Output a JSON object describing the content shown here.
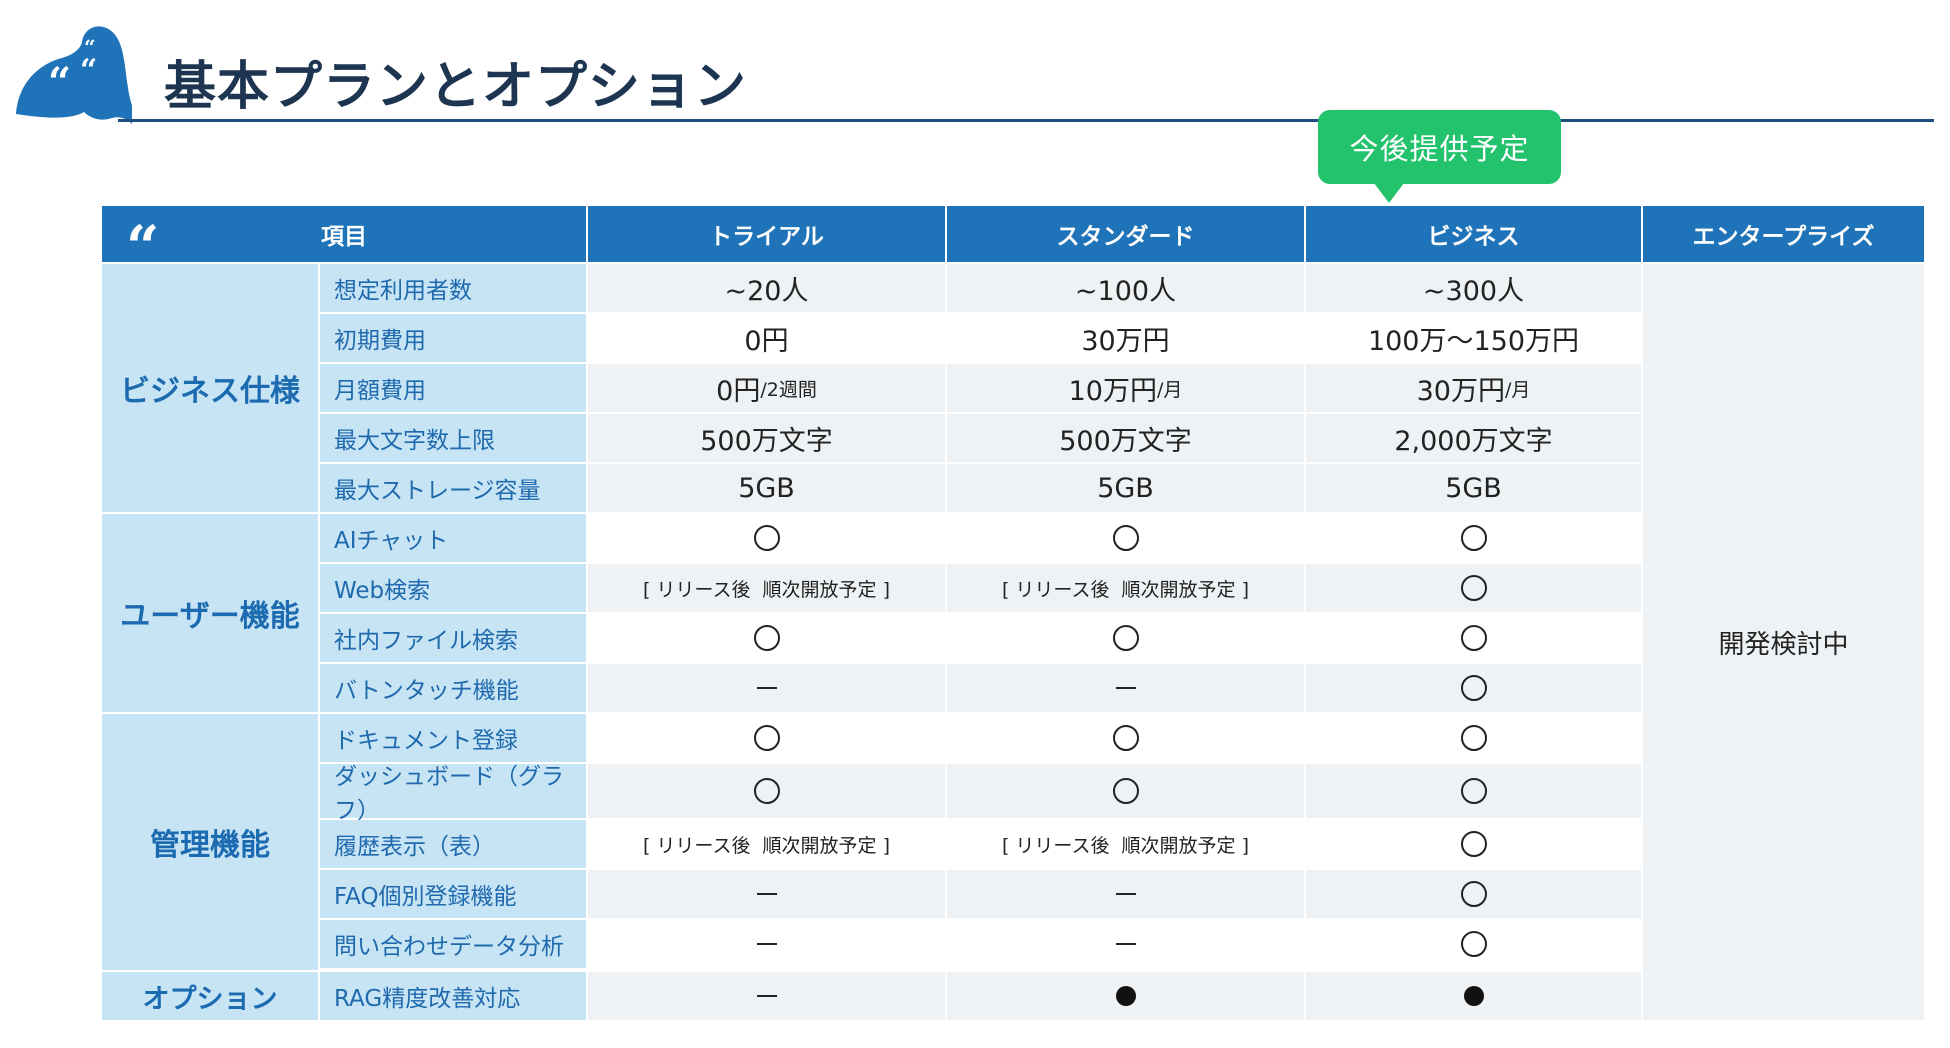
{
  "page": {
    "title": "基本プランとオプション"
  },
  "callout": {
    "label": "今後提供予定"
  },
  "table": {
    "header": {
      "quote_glyph": "“",
      "item_label": "項目",
      "plans": [
        "トライアル",
        "スタンダード",
        "ビジネス",
        "エンタープライズ"
      ]
    },
    "enterprise_status": "開発検討中",
    "categories": [
      {
        "label": "ビジネス仕様"
      },
      {
        "label": "ユーザー機能"
      },
      {
        "label": "管理機能"
      },
      {
        "label": "オプション"
      }
    ],
    "rows": [
      {
        "item": "想定利用者数",
        "values": [
          {
            "type": "text",
            "text": "~20人"
          },
          {
            "type": "text",
            "text": "~100人"
          },
          {
            "type": "text",
            "text": "~300人"
          }
        ]
      },
      {
        "item": "初期費用",
        "values": [
          {
            "type": "text",
            "text": "0円"
          },
          {
            "type": "text",
            "text": "30万円"
          },
          {
            "type": "text",
            "text": "100万～150万円"
          }
        ]
      },
      {
        "item": "月額費用",
        "values": [
          {
            "type": "text",
            "text": "0円",
            "sub": "/2週間"
          },
          {
            "type": "text",
            "text": "10万円",
            "sub": "/月"
          },
          {
            "type": "text",
            "text": "30万円",
            "sub": "/月"
          }
        ]
      },
      {
        "item": "最大文字数上限",
        "values": [
          {
            "type": "text",
            "text": "500万文字"
          },
          {
            "type": "text",
            "text": "500万文字"
          },
          {
            "type": "text",
            "text": "2,000万文字"
          }
        ]
      },
      {
        "item": "最大ストレージ容量",
        "values": [
          {
            "type": "text",
            "text": "5GB"
          },
          {
            "type": "text",
            "text": "5GB"
          },
          {
            "type": "text",
            "text": "5GB"
          }
        ]
      },
      {
        "item": "AIチャット",
        "values": [
          {
            "type": "circle"
          },
          {
            "type": "circle"
          },
          {
            "type": "circle"
          }
        ]
      },
      {
        "item": "Web検索",
        "values": [
          {
            "type": "text",
            "text": "[ リリース後  順次開放予定 ]",
            "small": true
          },
          {
            "type": "text",
            "text": "[ リリース後  順次開放予定 ]",
            "small": true
          },
          {
            "type": "circle"
          }
        ]
      },
      {
        "item": "社内ファイル検索",
        "values": [
          {
            "type": "circle"
          },
          {
            "type": "circle"
          },
          {
            "type": "circle"
          }
        ]
      },
      {
        "item": "バトンタッチ機能",
        "values": [
          {
            "type": "dash"
          },
          {
            "type": "dash"
          },
          {
            "type": "circle"
          }
        ]
      },
      {
        "item": "ドキュメント登録",
        "values": [
          {
            "type": "circle"
          },
          {
            "type": "circle"
          },
          {
            "type": "circle"
          }
        ]
      },
      {
        "item": "ダッシュボード（グラフ）",
        "values": [
          {
            "type": "circle"
          },
          {
            "type": "circle"
          },
          {
            "type": "circle"
          }
        ]
      },
      {
        "item": "履歴表示（表）",
        "values": [
          {
            "type": "text",
            "text": "[ リリース後  順次開放予定 ]",
            "small": true
          },
          {
            "type": "text",
            "text": "[ リリース後  順次開放予定 ]",
            "small": true
          },
          {
            "type": "circle"
          }
        ]
      },
      {
        "item": "FAQ個別登録機能",
        "values": [
          {
            "type": "dash"
          },
          {
            "type": "dash"
          },
          {
            "type": "circle"
          }
        ]
      },
      {
        "item": "問い合わせデータ分析",
        "values": [
          {
            "type": "dash"
          },
          {
            "type": "dash"
          },
          {
            "type": "circle"
          }
        ]
      },
      {
        "item": "RAG精度改善対応",
        "values": [
          {
            "type": "dash"
          },
          {
            "type": "dot"
          },
          {
            "type": "dot"
          }
        ]
      }
    ]
  }
}
